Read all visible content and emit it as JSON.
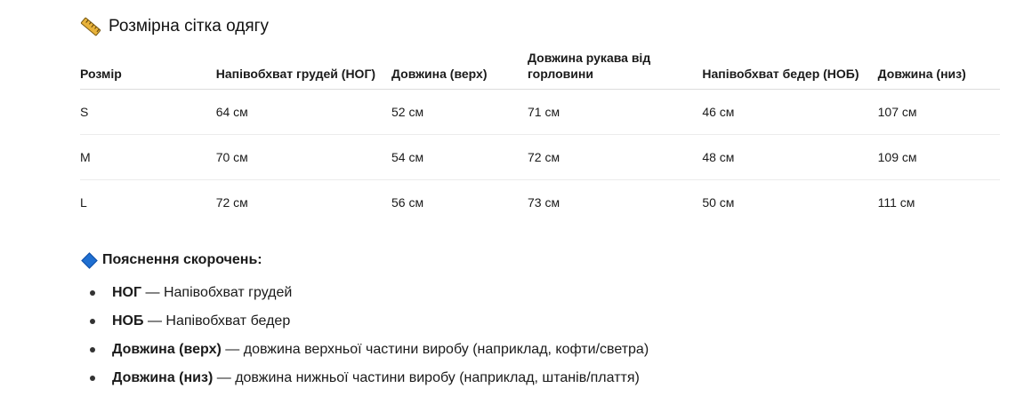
{
  "title": "Розмірна сітка одягу",
  "table": {
    "headers": [
      "Розмір",
      "Напівобхват грудей (НОГ)",
      "Довжина (верх)",
      "Довжина рукава від горловини",
      "Напівобхват бедер (НОБ)",
      "Довжина (низ)"
    ],
    "rows": [
      [
        "S",
        "64 см",
        "52 см",
        "71 см",
        "46 см",
        "107 см"
      ],
      [
        "M",
        "70 см",
        "54 см",
        "72 см",
        "48 см",
        "109 см"
      ],
      [
        "L",
        "72 см",
        "56 см",
        "73 см",
        "50 см",
        "111 см"
      ]
    ]
  },
  "abbreviations": {
    "heading": "Пояснення скорочень:",
    "items": [
      {
        "term": "НОГ",
        "desc": "— Напівобхват грудей"
      },
      {
        "term": "НОБ",
        "desc": "— Напівобхват бедер"
      },
      {
        "term": "Довжина (верх)",
        "desc": "— довжина верхньої частини виробу (наприклад, кофти/светра)"
      },
      {
        "term": "Довжина (низ)",
        "desc": "— довжина нижньої частини виробу (наприклад, штанів/плаття)"
      }
    ]
  },
  "icons": {
    "title_icon": "ruler-icon",
    "heading_icon": "blue-diamond-icon"
  },
  "colors": {
    "accent": "#1f6fd1",
    "ruler": "#e8b23a"
  }
}
